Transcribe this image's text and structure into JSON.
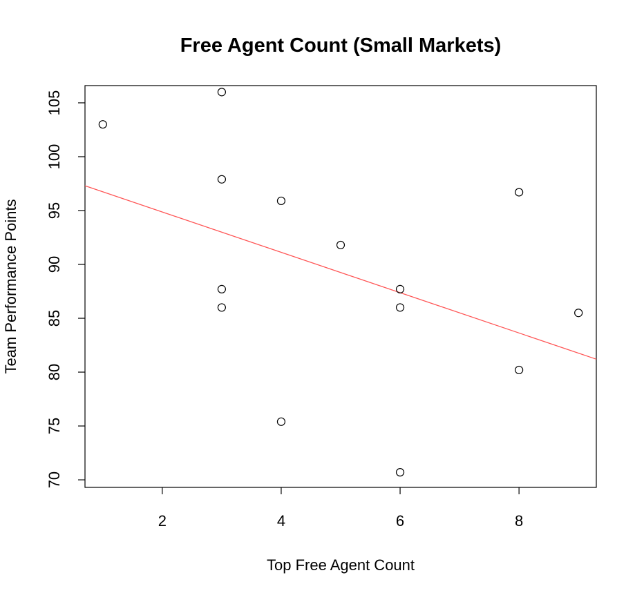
{
  "chart_data": {
    "type": "scatter",
    "title": "Free Agent Count (Small Markets)",
    "xlabel": "Top Free Agent Count",
    "ylabel": "Team Performance Points",
    "xlim": [
      0.7,
      9.3
    ],
    "ylim": [
      69.3,
      106.6
    ],
    "x_ticks": [
      2,
      4,
      6,
      8
    ],
    "y_ticks": [
      70,
      75,
      80,
      85,
      90,
      95,
      100,
      105
    ],
    "grid": false,
    "points": [
      {
        "x": 1,
        "y": 103
      },
      {
        "x": 3,
        "y": 106
      },
      {
        "x": 3,
        "y": 97.9
      },
      {
        "x": 3,
        "y": 87.7
      },
      {
        "x": 3,
        "y": 86
      },
      {
        "x": 4,
        "y": 95.9
      },
      {
        "x": 4,
        "y": 75.4
      },
      {
        "x": 5,
        "y": 91.8
      },
      {
        "x": 6,
        "y": 87.7
      },
      {
        "x": 6,
        "y": 86
      },
      {
        "x": 6,
        "y": 70.7
      },
      {
        "x": 8,
        "y": 96.7
      },
      {
        "x": 8,
        "y": 80.2
      },
      {
        "x": 9,
        "y": 85.5
      }
    ],
    "fit_line": {
      "x": [
        0.7,
        9.3
      ],
      "y": [
        97.3,
        81.2
      ],
      "color": "#ff5555"
    },
    "point_color": "#000000"
  }
}
